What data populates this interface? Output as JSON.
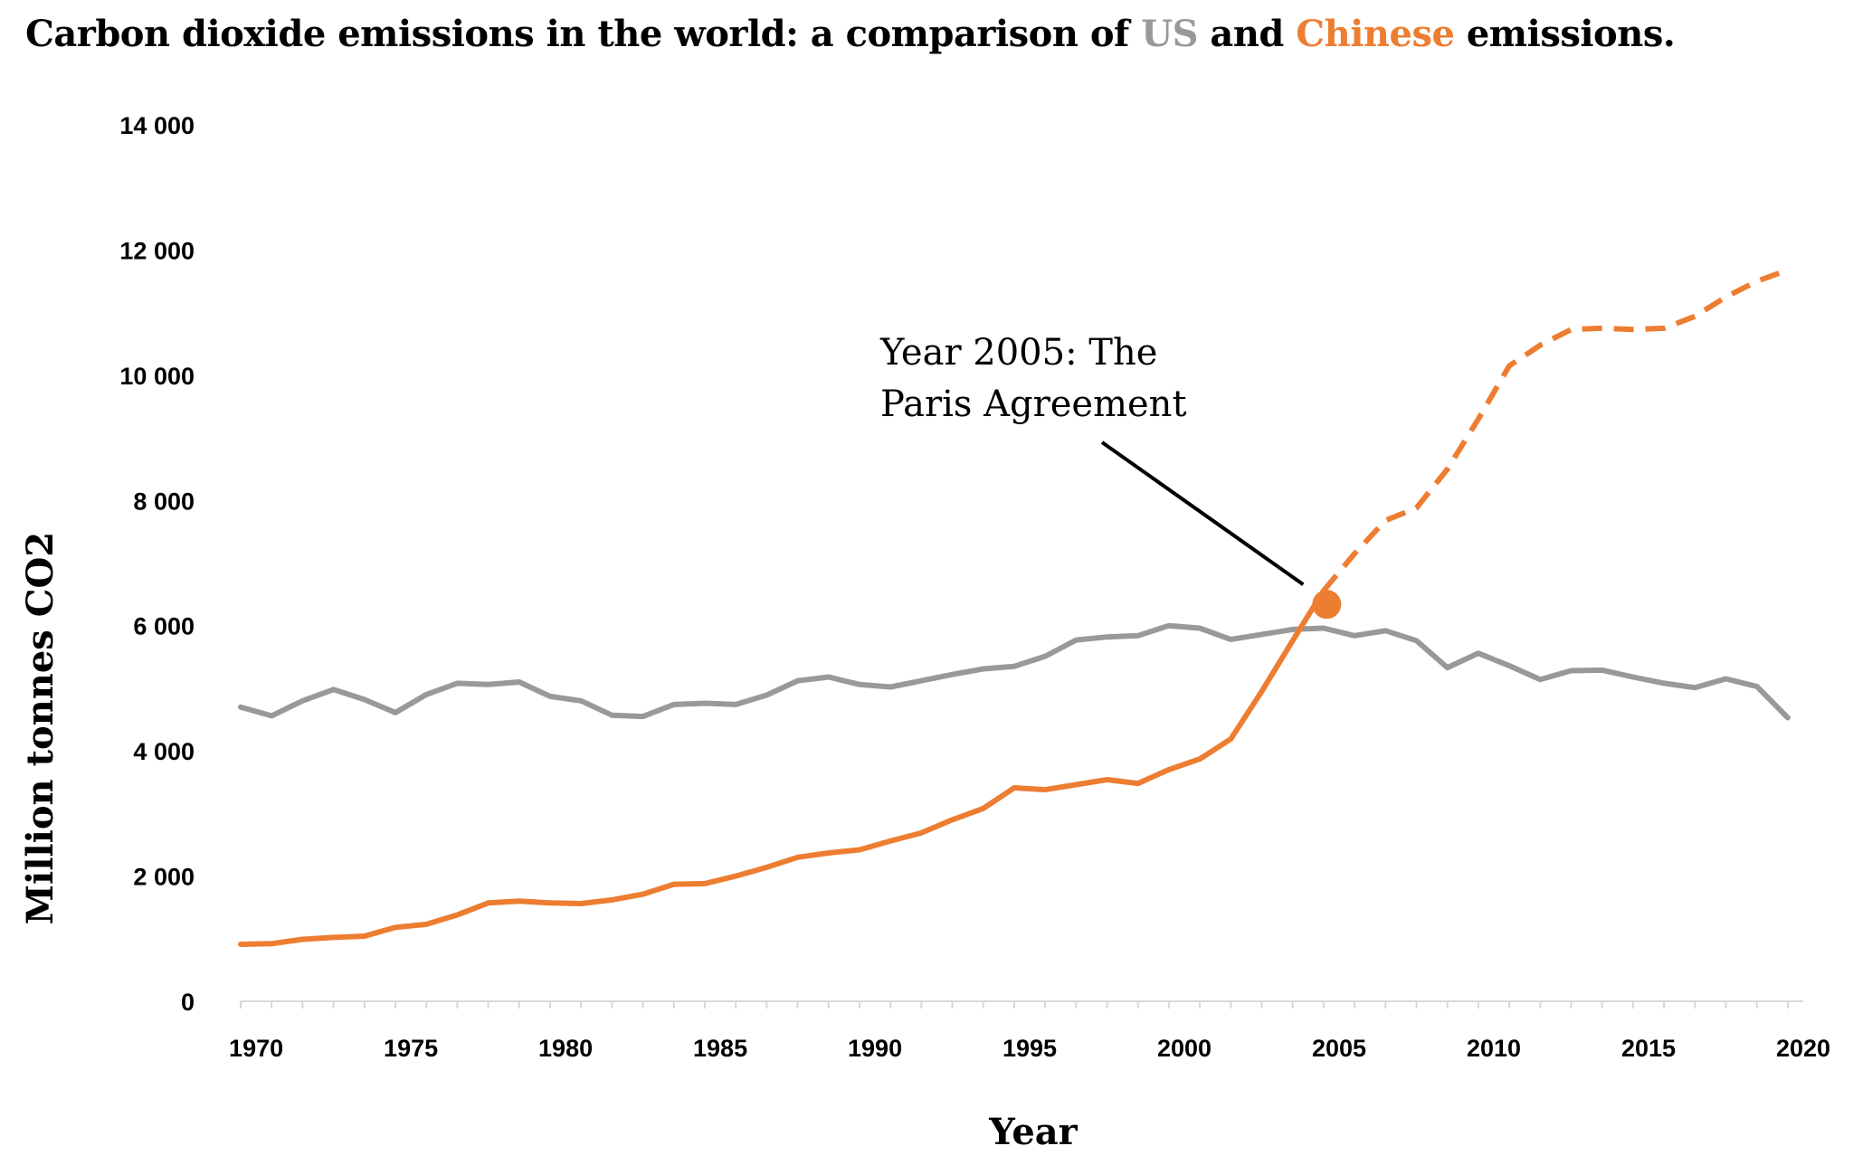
{
  "title": {
    "prefix": "Carbon dioxide emissions in the world: a comparison of ",
    "us_word": "US",
    "and_word": " and ",
    "china_word": "Chinese",
    "suffix": " emissions."
  },
  "colors": {
    "us": "#999999",
    "china": "#ED7D31",
    "text": "#000000"
  },
  "chart_data": {
    "type": "line",
    "title": "Carbon dioxide emissions in the world: a comparison of US and Chinese emissions.",
    "xlabel": "Year",
    "ylabel": "Million tonnes CO2",
    "xlim": [
      1969.5,
      2020
    ],
    "ylim": [
      0,
      14000
    ],
    "x_ticks": [
      1970,
      1975,
      1980,
      1985,
      1990,
      1995,
      2000,
      2005,
      2010,
      2015,
      2020
    ],
    "y_ticks": [
      0,
      2000,
      4000,
      6000,
      8000,
      10000,
      12000,
      14000
    ],
    "y_tick_labels": [
      "0",
      "2 000",
      "4 000",
      "6 000",
      "8 000",
      "10 000",
      "12 000",
      "14 000"
    ],
    "grid": false,
    "x": [
      1969.5,
      1970.5,
      1971.5,
      1972.5,
      1973.5,
      1974.5,
      1975.5,
      1976.5,
      1977.5,
      1978.5,
      1979.5,
      1980.5,
      1981.5,
      1982.5,
      1983.5,
      1984.5,
      1985.5,
      1986.5,
      1987.5,
      1988.5,
      1989.5,
      1990.5,
      1991.5,
      1992.5,
      1993.5,
      1994.5,
      1995.5,
      1996.5,
      1997.5,
      1998.5,
      1999.5,
      2000.5,
      2001.5,
      2002.5,
      2003.5,
      2004.5,
      2005.5,
      2006.5,
      2007.5,
      2008.5,
      2009.5,
      2010.5,
      2011.5,
      2012.5,
      2013.5,
      2014.5,
      2015.5,
      2016.5,
      2017.5,
      2018.5,
      2019.5
    ],
    "series": [
      {
        "name": "US",
        "style": "solid",
        "values": [
          4700,
          4560,
          4800,
          4980,
          4820,
          4610,
          4900,
          5080,
          5060,
          5100,
          4870,
          4800,
          4570,
          4550,
          4740,
          4760,
          4740,
          4890,
          5120,
          5180,
          5060,
          5020,
          5120,
          5220,
          5310,
          5350,
          5510,
          5770,
          5820,
          5840,
          6000,
          5960,
          5780,
          5860,
          5940,
          5960,
          5840,
          5920,
          5760,
          5330,
          5560,
          5360,
          5140,
          5280,
          5290,
          5180,
          5080,
          5010,
          5150,
          5030,
          4530
        ]
      },
      {
        "name": "China",
        "style": "solid until 2005, dashed after",
        "values": [
          910,
          920,
          990,
          1020,
          1040,
          1180,
          1230,
          1380,
          1570,
          1600,
          1570,
          1560,
          1620,
          1710,
          1870,
          1880,
          2000,
          2140,
          2300,
          2370,
          2420,
          2560,
          2690,
          2900,
          3080,
          3410,
          3380,
          3460,
          3540,
          3480,
          3700,
          3870,
          4190,
          4950,
          5760,
          6560,
          7150,
          7680,
          7880,
          8500,
          9300,
          10150,
          10480,
          10730,
          10750,
          10730,
          10750,
          10940,
          11250,
          11500,
          11680
        ]
      }
    ],
    "annotations": [
      {
        "text_lines": [
          "Year 2005: The",
          "Paris Agreement"
        ],
        "x": 2004.6,
        "y": 6340
      }
    ]
  }
}
